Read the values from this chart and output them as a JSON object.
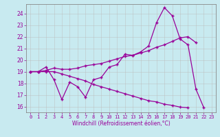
{
  "xlabel": "Windchill (Refroidissement éolien,°C)",
  "bg_color": "#c8eaf0",
  "line_color": "#990099",
  "grid_color": "#bbbbbb",
  "x_ticks": [
    0,
    1,
    2,
    3,
    4,
    5,
    6,
    7,
    8,
    9,
    10,
    11,
    12,
    13,
    14,
    15,
    16,
    17,
    18,
    19,
    20,
    21,
    22,
    23
  ],
  "y_ticks": [
    16,
    17,
    18,
    19,
    20,
    21,
    22,
    23,
    24
  ],
  "ylim": [
    15.5,
    24.8
  ],
  "xlim": [
    -0.5,
    23.5
  ],
  "line1": [
    19.0,
    19.0,
    19.4,
    18.3,
    16.6,
    18.1,
    17.7,
    16.8,
    18.3,
    18.5,
    19.4,
    19.6,
    20.5,
    20.4,
    20.7,
    21.2,
    23.2,
    24.5,
    23.8,
    21.8,
    21.3,
    17.5,
    15.9,
    null
  ],
  "line2": [
    19.0,
    19.0,
    19.1,
    19.3,
    19.2,
    19.2,
    19.3,
    19.5,
    19.6,
    19.7,
    19.9,
    20.1,
    20.3,
    20.4,
    20.6,
    20.8,
    21.1,
    21.3,
    21.6,
    21.9,
    22.0,
    21.5,
    null,
    null
  ],
  "line3": [
    19.0,
    19.0,
    19.0,
    19.0,
    18.8,
    18.6,
    18.4,
    18.2,
    17.9,
    17.7,
    17.5,
    17.3,
    17.1,
    16.9,
    16.7,
    16.5,
    16.4,
    16.2,
    16.1,
    15.95,
    15.9,
    null,
    null,
    null
  ]
}
